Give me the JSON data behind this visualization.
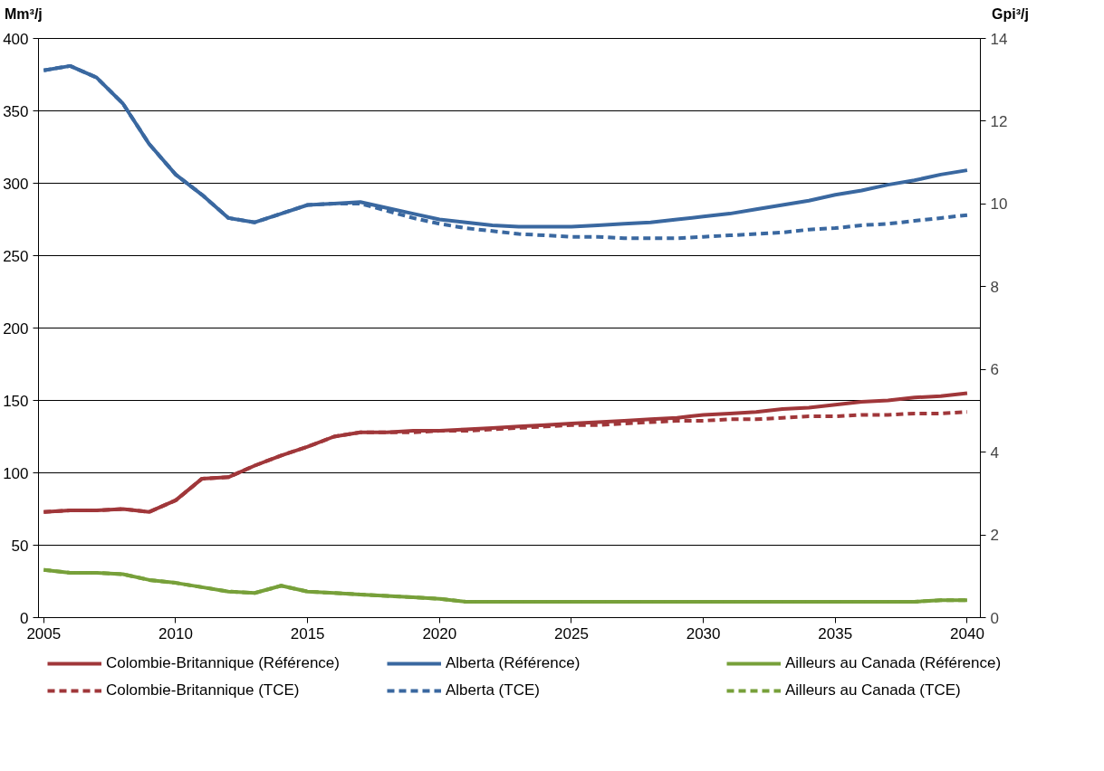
{
  "chart_data": {
    "type": "line",
    "ylabel": "Mm³/j",
    "y2label": "Gpi³/j",
    "x": [
      2005,
      2006,
      2007,
      2008,
      2009,
      2010,
      2011,
      2012,
      2013,
      2014,
      2015,
      2016,
      2017,
      2018,
      2019,
      2020,
      2021,
      2022,
      2023,
      2024,
      2025,
      2026,
      2027,
      2028,
      2029,
      2030,
      2031,
      2032,
      2033,
      2034,
      2035,
      2036,
      2037,
      2038,
      2039,
      2040
    ],
    "xlim": [
      2004.8,
      2040.5
    ],
    "xticks": [
      2005,
      2010,
      2015,
      2020,
      2025,
      2030,
      2035,
      2040
    ],
    "ylim": [
      0,
      400
    ],
    "yticks": [
      0,
      50,
      100,
      150,
      200,
      250,
      300,
      350,
      400
    ],
    "y2lim": [
      0,
      14
    ],
    "y2ticks": [
      0,
      2,
      4,
      6,
      8,
      10,
      12,
      14
    ],
    "grid": "y",
    "legend": "bottom",
    "line_style": "solid",
    "marker": "none",
    "series": [
      {
        "name": "Colombie-Britannique (Référence)",
        "color": "#a0373a",
        "values": [
          73,
          74,
          74,
          75,
          73,
          81,
          96,
          97,
          105,
          112,
          118,
          125,
          128,
          128,
          129,
          129,
          130,
          131,
          132,
          133,
          134,
          135,
          136,
          137,
          138,
          140,
          141,
          142,
          144,
          145,
          147,
          149,
          150,
          152,
          153,
          155
        ]
      },
      {
        "name": "Alberta (Référence)",
        "color": "#3a68a0",
        "values": [
          378,
          381,
          373,
          355,
          327,
          306,
          292,
          276,
          273,
          279,
          285,
          286,
          287,
          283,
          279,
          275,
          273,
          271,
          270,
          270,
          270,
          271,
          272,
          273,
          275,
          277,
          279,
          282,
          285,
          288,
          292,
          295,
          299,
          302,
          306,
          309
        ]
      },
      {
        "name": "Ailleurs au Canada (Référence)",
        "color": "#77a03a",
        "values": [
          33,
          31,
          31,
          30,
          26,
          24,
          21,
          18,
          17,
          22,
          18,
          17,
          16,
          15,
          14,
          13,
          11,
          11,
          11,
          11,
          11,
          11,
          11,
          11,
          11,
          11,
          11,
          11,
          11,
          11,
          11,
          11,
          11,
          11,
          12,
          12
        ]
      },
      {
        "name": "Colombie-Britannique (TCE)",
        "color": "#a0373a",
        "line_style": "dashed",
        "values": [
          73,
          74,
          74,
          75,
          73,
          81,
          96,
          97,
          105,
          112,
          118,
          125,
          128,
          128,
          128,
          129,
          129,
          130,
          131,
          132,
          133,
          133,
          134,
          135,
          136,
          136,
          137,
          137,
          138,
          139,
          139,
          140,
          140,
          141,
          141,
          142
        ]
      },
      {
        "name": "Alberta (TCE)",
        "color": "#3a68a0",
        "line_style": "dashed",
        "values": [
          378,
          381,
          373,
          355,
          327,
          306,
          292,
          276,
          273,
          279,
          285,
          286,
          286,
          281,
          276,
          272,
          269,
          267,
          265,
          264,
          263,
          263,
          262,
          262,
          262,
          263,
          264,
          265,
          266,
          268,
          269,
          271,
          272,
          274,
          276,
          278
        ]
      },
      {
        "name": "Ailleurs au Canada (TCE)",
        "color": "#77a03a",
        "line_style": "dashed",
        "values": [
          33,
          31,
          31,
          30,
          26,
          24,
          21,
          18,
          17,
          22,
          18,
          17,
          16,
          15,
          14,
          13,
          11,
          11,
          11,
          11,
          11,
          11,
          11,
          11,
          11,
          11,
          11,
          11,
          11,
          11,
          11,
          11,
          11,
          11,
          12,
          12
        ]
      }
    ]
  }
}
